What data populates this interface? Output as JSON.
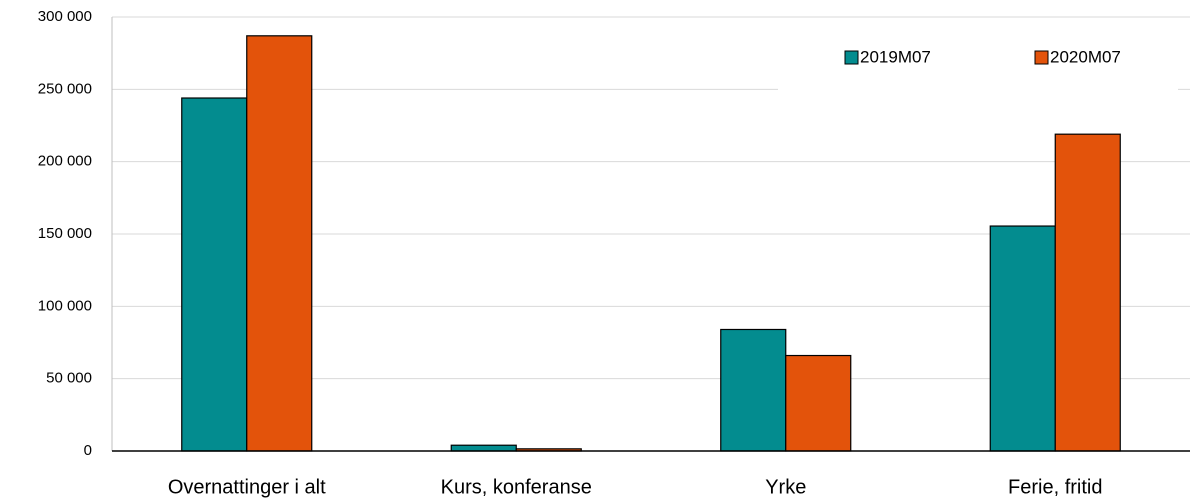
{
  "chart_data": {
    "type": "bar",
    "categories": [
      "Overnattinger i alt",
      "Kurs, konferanse",
      "Yrke",
      "Ferie, fritid"
    ],
    "series": [
      {
        "name": "2019M07",
        "color": "#038c8f",
        "values": [
          244000,
          4000,
          84000,
          155500
        ]
      },
      {
        "name": "2020M07",
        "color": "#e3530b",
        "values": [
          287000,
          1500,
          66000,
          219000
        ]
      }
    ],
    "ylim": [
      0,
      300000
    ],
    "yticks": [
      {
        "value": 0,
        "label": "0"
      },
      {
        "value": 50000,
        "label": "50 000"
      },
      {
        "value": 100000,
        "label": "100 000"
      },
      {
        "value": 150000,
        "label": "150 000"
      },
      {
        "value": 200000,
        "label": "200 000"
      },
      {
        "value": 250000,
        "label": "250 000"
      },
      {
        "value": 300000,
        "label": "300 000"
      }
    ],
    "grid": true,
    "legend": "top-right"
  }
}
